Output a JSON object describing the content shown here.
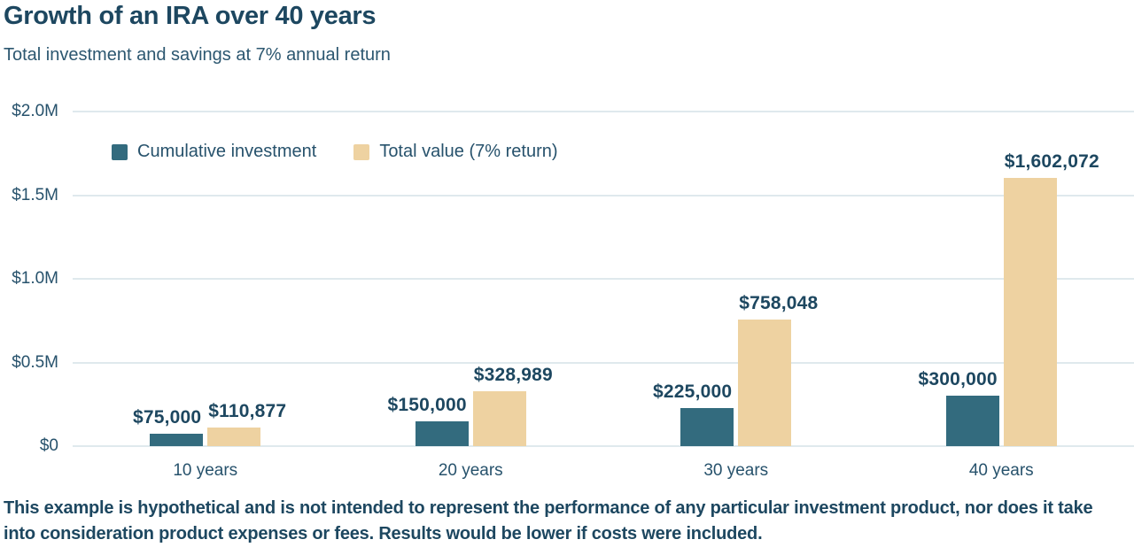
{
  "header": {
    "title": "Growth of an IRA over 40 years",
    "subtitle": "Total investment and savings at 7% annual return"
  },
  "chart_data": {
    "type": "bar",
    "title": "Growth of an IRA over 40 years",
    "subtitle": "Total investment and savings at 7% annual return",
    "categories": [
      "10 years",
      "20 years",
      "30 years",
      "40 years"
    ],
    "series": [
      {
        "name": "Cumulative investment",
        "color": "#336b7e",
        "values": [
          75000,
          150000,
          225000,
          300000
        ],
        "labels": [
          "$75,000",
          "$150,000",
          "$225,000",
          "$300,000"
        ],
        "label_anchor": "right"
      },
      {
        "name": "Total value (7% return)",
        "color": "#eed2a1",
        "values": [
          110877,
          328989,
          758048,
          1602072
        ],
        "labels": [
          "$110,877",
          "$328,989",
          "$758,048",
          "$1,602,072"
        ],
        "label_anchor": "center"
      }
    ],
    "y_ticks": [
      {
        "value": 0,
        "label": "$0"
      },
      {
        "value": 500000,
        "label": "$0.5M"
      },
      {
        "value": 1000000,
        "label": "$1.0M"
      },
      {
        "value": 1500000,
        "label": "$1.5M"
      },
      {
        "value": 2000000,
        "label": "$2.0M"
      }
    ],
    "ylim": [
      0,
      2000000
    ],
    "grid": true,
    "legend_position": "top-left-inside",
    "gridline_color": "#dfe9ed"
  },
  "footnote": "This example is hypothetical and is not intended to represent the performance of any particular investment product, nor does it take into consideration product expenses or fees. Results would be lower if costs were included."
}
